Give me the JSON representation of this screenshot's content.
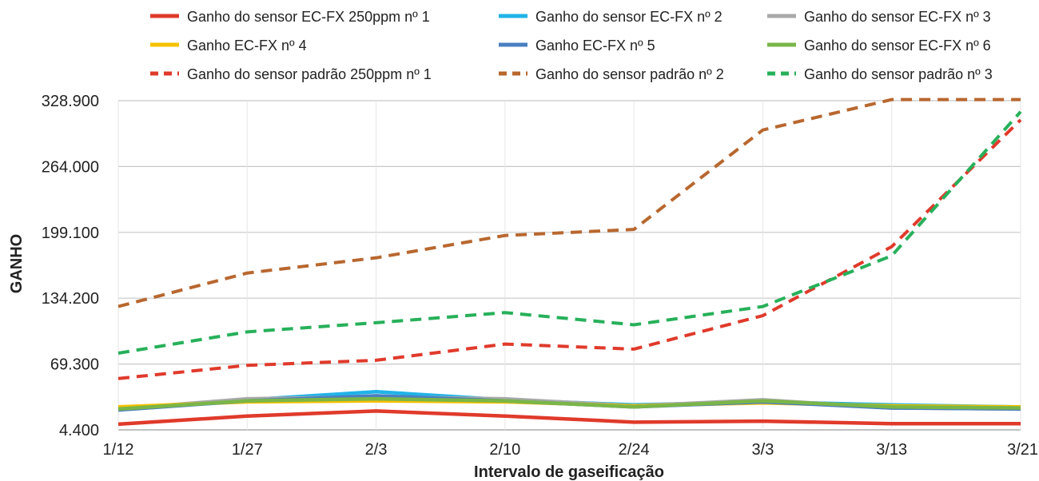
{
  "chart_data": {
    "type": "line",
    "x_title": "Intervalo de gaseificação",
    "y_title": "GANHO",
    "categories": [
      "1/12",
      "1/27",
      "2/3",
      "2/10",
      "2/24",
      "3/3",
      "3/13",
      "3/21"
    ],
    "y_ticks": [
      "4.400",
      "69.300",
      "134.200",
      "199.100",
      "264.000",
      "328.900"
    ],
    "ylim": [
      4400,
      328900
    ],
    "grid": true,
    "legend_position": "top",
    "series": [
      {
        "name": "Ganho do sensor EC-FX 250ppm nº 1",
        "color": "#e03a2b",
        "dashed": false,
        "values": [
          10000,
          18000,
          23000,
          18000,
          12000,
          13000,
          10500,
          10500
        ]
      },
      {
        "name": "Ganho do sensor EC-FX nº 2",
        "color": "#21b3e8",
        "dashed": false,
        "values": [
          25000,
          34000,
          42000,
          34000,
          29000,
          32000,
          29000,
          27000
        ]
      },
      {
        "name": "Ganho do sensor EC-FX nº 3",
        "color": "#a9a9a9",
        "dashed": false,
        "values": [
          25000,
          35000,
          37000,
          35000,
          28000,
          34000,
          26000,
          25000
        ]
      },
      {
        "name": "Ganho EC-FX nº 4",
        "color": "#f5c200",
        "dashed": false,
        "values": [
          27000,
          32000,
          33000,
          32000,
          28000,
          31000,
          28000,
          27000
        ]
      },
      {
        "name": "Ganho EC-FX nº 5",
        "color": "#4a7fc1",
        "dashed": false,
        "values": [
          24000,
          33000,
          38000,
          33000,
          27000,
          32000,
          26000,
          25000
        ]
      },
      {
        "name": "Ganho do sensor EC-FX nº 6",
        "color": "#7ab648",
        "dashed": false,
        "values": [
          25000,
          33000,
          35000,
          33000,
          27000,
          33000,
          27000,
          26000
        ]
      },
      {
        "name": "Ganho do sensor padrão 250ppm nº 1",
        "color": "#e03a2b",
        "dashed": true,
        "values": [
          55000,
          68000,
          73000,
          89000,
          84000,
          117000,
          185000,
          310000
        ]
      },
      {
        "name": "Ganho do sensor padrão nº 2",
        "color": "#b8672f",
        "dashed": true,
        "values": [
          126000,
          159000,
          174000,
          196000,
          202000,
          300000,
          330000,
          330000
        ]
      },
      {
        "name": "Ganho do sensor padrão nº 3",
        "color": "#27b05a",
        "dashed": true,
        "values": [
          80000,
          101000,
          110000,
          120000,
          108000,
          126000,
          176000,
          318000
        ]
      }
    ]
  }
}
